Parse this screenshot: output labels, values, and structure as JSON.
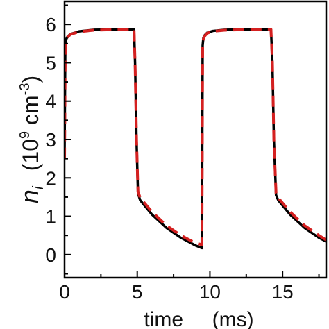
{
  "chart_data": {
    "type": "line",
    "xlabel": "time     (ms)",
    "ylabel": {
      "symbol": "n",
      "subscript": "i",
      "unit_prefix": "(10",
      "unit_exp1": "9",
      "unit_mid": " cm",
      "unit_exp2": "-3",
      "unit_suffix": ")"
    },
    "xlim": [
      0,
      18
    ],
    "ylim": [
      -0.6,
      6.6
    ],
    "xticks": [
      0,
      5,
      10,
      15
    ],
    "xtick_labels": [
      "0",
      "5",
      "10",
      "15"
    ],
    "yticks": [
      0,
      1,
      2,
      3,
      4,
      5,
      6
    ],
    "ytick_labels": [
      "0",
      "1",
      "2",
      "3",
      "4",
      "5",
      "6"
    ],
    "grid": false,
    "colors": {
      "series_black": "#000000",
      "series_red": "#d42020"
    },
    "series": [
      {
        "style": "solid",
        "color": "#000000",
        "x": [
          0.0,
          0.05,
          0.1,
          0.2,
          0.4,
          1.0,
          2.0,
          4.0,
          4.78,
          4.85,
          4.95,
          5.05,
          5.2,
          6.0,
          7.0,
          8.0,
          9.0,
          9.45,
          9.5,
          9.55,
          9.65,
          9.8,
          10.2,
          11.0,
          13.0,
          14.2,
          14.3,
          14.4,
          14.55,
          14.7,
          15.5,
          16.5,
          17.5,
          18.0
        ],
        "y": [
          2.6,
          5.4,
          5.6,
          5.68,
          5.75,
          5.82,
          5.86,
          5.87,
          5.87,
          5.0,
          3.0,
          1.6,
          1.42,
          1.05,
          0.7,
          0.44,
          0.24,
          0.17,
          5.45,
          5.65,
          5.72,
          5.78,
          5.83,
          5.86,
          5.87,
          5.87,
          5.0,
          3.0,
          1.55,
          1.42,
          1.05,
          0.7,
          0.44,
          0.34
        ]
      },
      {
        "style": "dashed",
        "color": "#d42020",
        "x": [
          0.0,
          0.05,
          0.1,
          0.2,
          0.4,
          1.0,
          2.0,
          4.0,
          4.78,
          4.85,
          4.95,
          5.05,
          5.2,
          6.0,
          7.0,
          8.0,
          9.0,
          9.45,
          9.5,
          9.55,
          9.65,
          9.8,
          10.2,
          11.0,
          13.0,
          14.2,
          14.3,
          14.4,
          14.55,
          14.7,
          15.5,
          16.5,
          17.5,
          18.0
        ],
        "y": [
          2.5,
          5.35,
          5.58,
          5.66,
          5.74,
          5.81,
          5.85,
          5.87,
          5.87,
          5.0,
          3.0,
          1.65,
          1.48,
          1.12,
          0.76,
          0.5,
          0.3,
          0.26,
          5.4,
          5.62,
          5.7,
          5.77,
          5.82,
          5.85,
          5.87,
          5.87,
          5.0,
          3.0,
          1.6,
          1.48,
          1.12,
          0.76,
          0.5,
          0.38
        ]
      }
    ]
  }
}
